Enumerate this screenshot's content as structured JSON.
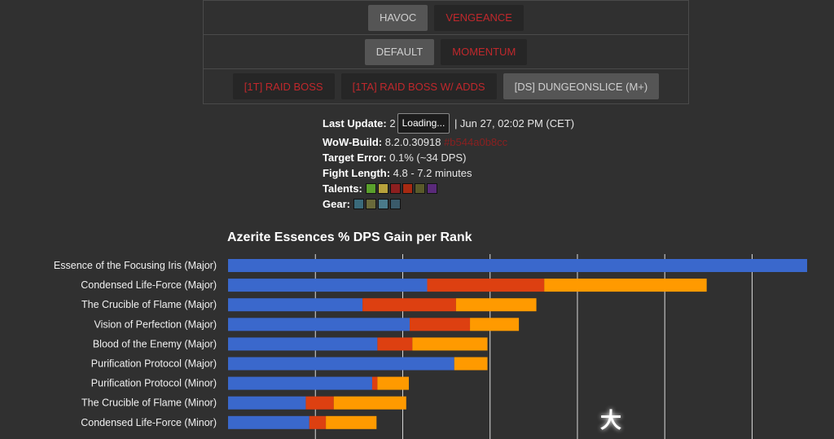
{
  "selector": {
    "spec_row": [
      {
        "label": "HAVOC",
        "state": "active"
      },
      {
        "label": "VENGEANCE",
        "state": "inactive"
      }
    ],
    "mode_row": [
      {
        "label": "DEFAULT",
        "state": "active"
      },
      {
        "label": "MOMENTUM",
        "state": "inactive"
      }
    ],
    "fight_row": [
      {
        "label": "[1T] RAID BOSS",
        "state": "inactive"
      },
      {
        "label": "[1TA] RAID BOSS W/ ADDS",
        "state": "inactive"
      },
      {
        "label": "[DS] DUNGEONSLICE (M+)",
        "state": "active"
      }
    ]
  },
  "info": {
    "last_update_label": "Last Update:",
    "last_update_prefix": "2",
    "loading_tooltip": "Loading...",
    "last_update_value": "| Jun 27, 02:02 PM (CET)",
    "build_label": "WoW-Build:",
    "build_value": "8.2.0.30918",
    "build_hash": "#b544a0b8cc",
    "error_label": "Target Error:",
    "error_value": "0.1% (~34 DPS)",
    "fight_label": "Fight Length:",
    "fight_value": "4.8 - 7.2 minutes",
    "talents_label": "Talents:",
    "talent_icons": [
      {
        "name": "talent-1-icon",
        "color": "#5aa02c"
      },
      {
        "name": "talent-2-icon",
        "color": "#b8a23c"
      },
      {
        "name": "talent-3-icon",
        "color": "#8c1f1f"
      },
      {
        "name": "talent-4-icon",
        "color": "#a62a12"
      },
      {
        "name": "talent-5-icon",
        "color": "#5a5a2a"
      },
      {
        "name": "talent-6-icon",
        "color": "#5a2a7a"
      }
    ],
    "gear_label": "Gear:",
    "gear_icons": [
      {
        "name": "gear-1-icon",
        "color": "#3a6a7a"
      },
      {
        "name": "gear-2-icon",
        "color": "#6a6a3a"
      },
      {
        "name": "gear-3-icon",
        "color": "#4a7a8a"
      },
      {
        "name": "gear-4-icon",
        "color": "#3a5a6a"
      }
    ]
  },
  "chart_data": {
    "type": "bar",
    "orientation": "horizontal",
    "stacked": true,
    "title": "Azerite Essences % DPS Gain per Rank",
    "categories": [
      "Essence of the Focusing Iris (Major)",
      "Condensed Life-Force (Major)",
      "The Crucible of Flame (Major)",
      "Vision of Perfection (Major)",
      "Blood of the Enemy (Major)",
      "Purification Protocol (Major)",
      "Purification Protocol (Minor)",
      "The Crucible of Flame (Minor)",
      "Condensed Life-Force (Minor)"
    ],
    "series": [
      {
        "color": "#3a68cc",
        "values": [
          6.63,
          2.28,
          1.54,
          2.08,
          1.71,
          2.59,
          1.65,
          0.89,
          0.93
        ]
      },
      {
        "color": "#dd4011",
        "values": [
          0,
          1.34,
          1.07,
          0.69,
          0.4,
          0,
          0.06,
          0.32,
          0.19
        ]
      },
      {
        "color": "#ff9a00",
        "values": [
          0,
          1.86,
          0.92,
          0.56,
          0.86,
          0.38,
          0.36,
          0.83,
          0.58
        ]
      }
    ],
    "xlim": [
      0,
      6.63
    ],
    "gridlines": [
      1,
      2,
      3,
      4,
      5,
      6
    ],
    "grid": true
  },
  "colors": {
    "background": "#303030",
    "inactive_text": "#c0282c",
    "active_button": "#555555"
  },
  "watermark": "大"
}
